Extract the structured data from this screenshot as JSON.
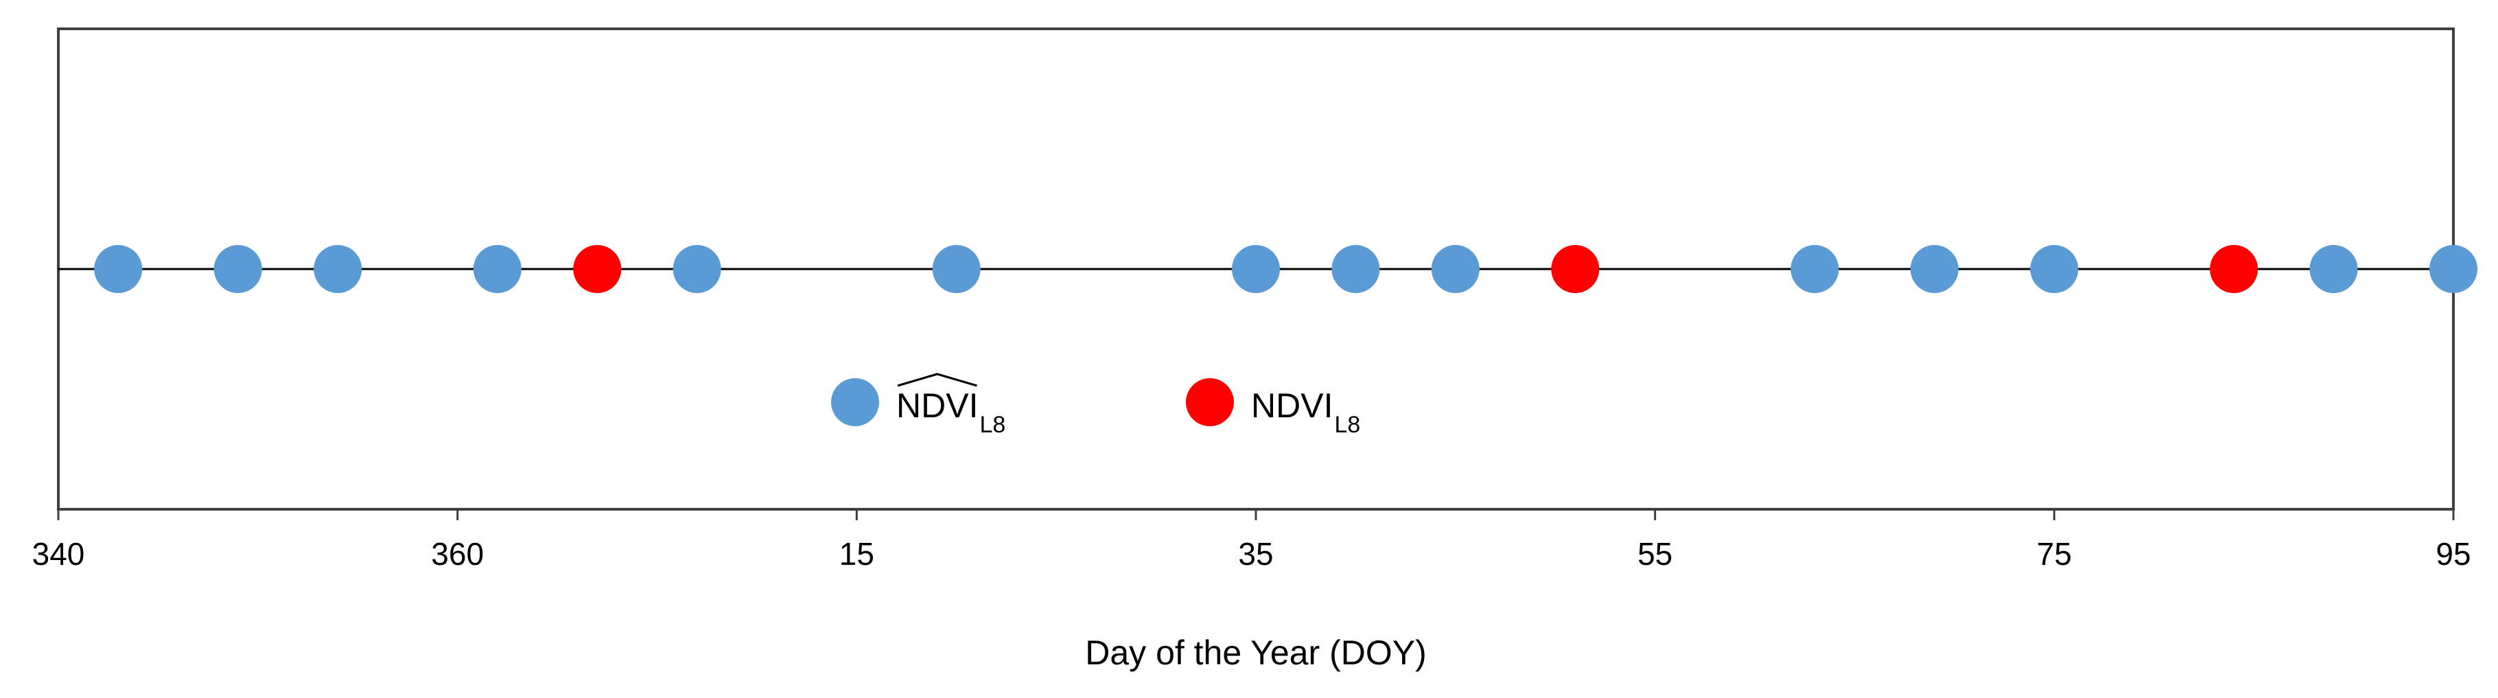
{
  "chart_data": {
    "type": "scatter",
    "xlabel": "Day of the Year (DOY)",
    "ylabel": "",
    "title": "",
    "x_ticks": [
      "340",
      "360",
      "15",
      "35",
      "55",
      "75",
      "95"
    ],
    "xlim": [
      "Dec 6",
      "Apr 5"
    ],
    "grid": false,
    "legend_position": "center-bottom",
    "series": [
      {
        "name": "NDVI_L8 (hat)",
        "legend_label": "NDVI",
        "legend_sub": "L8",
        "legend_hat": true,
        "color": "#5b9bd5",
        "x": [
          "Dec 9",
          "Dec 15",
          "Dec 20",
          "Dec 28",
          "Jan 7",
          "Jan 20",
          "Feb 4",
          "Feb 9",
          "Feb 14",
          "Mar 4",
          "Mar 10",
          "Mar 16",
          "Mar 30",
          "Apr 5"
        ]
      },
      {
        "name": "NDVI_L8",
        "legend_label": "NDVI",
        "legend_sub": "L8",
        "legend_hat": false,
        "color": "#ff0000",
        "x": [
          "Jan 2",
          "Feb 20",
          "Mar 25"
        ]
      }
    ]
  }
}
